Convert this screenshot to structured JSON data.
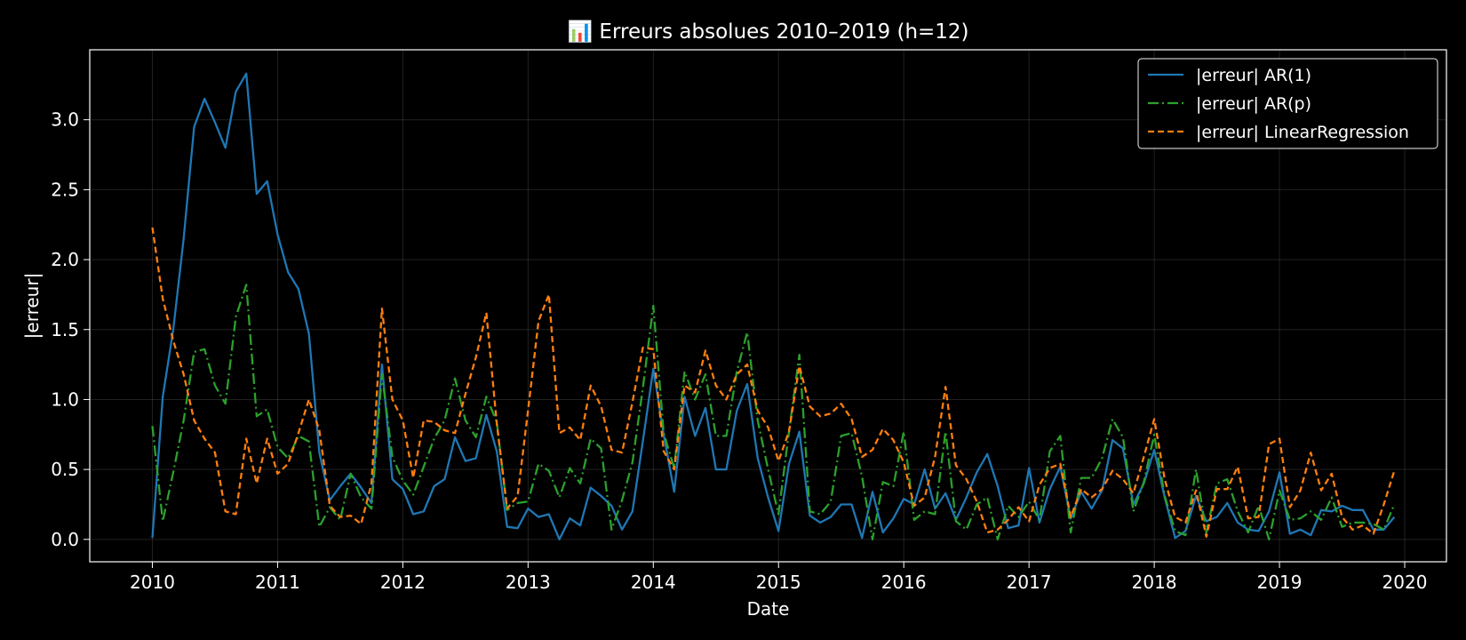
{
  "chart_data": {
    "type": "line",
    "title": "📊 Erreurs absolues 2010–2019 (h=12)",
    "xlabel": "Date",
    "ylabel": "|erreur|",
    "x_start": "2010-01",
    "x_ticks": [
      "2010",
      "2011",
      "2012",
      "2013",
      "2014",
      "2015",
      "2016",
      "2017",
      "2018",
      "2019",
      "2020"
    ],
    "xlim": [
      "2009-07",
      "2020-05"
    ],
    "ylim": [
      -0.16,
      3.5
    ],
    "y_ticks": [
      "0.0",
      "0.5",
      "1.0",
      "1.5",
      "2.0",
      "2.5",
      "3.0"
    ],
    "grid": true,
    "legend_position": "top-right",
    "background": "#000000",
    "foreground": "#ffffff",
    "series": [
      {
        "name": "|erreur| AR(1)",
        "color": "#1f77b4",
        "style": "solid",
        "values": [
          0.01,
          1.02,
          1.5,
          2.15,
          2.95,
          3.15,
          2.98,
          2.8,
          3.2,
          3.33,
          2.47,
          2.56,
          2.18,
          1.91,
          1.79,
          1.47,
          0.62,
          0.28,
          0.38,
          0.47,
          0.37,
          0.26,
          1.25,
          0.43,
          0.36,
          0.18,
          0.2,
          0.38,
          0.43,
          0.73,
          0.56,
          0.58,
          0.89,
          0.63,
          0.09,
          0.08,
          0.22,
          0.16,
          0.18,
          0.0,
          0.15,
          0.1,
          0.37,
          0.31,
          0.24,
          0.07,
          0.2,
          0.7,
          1.22,
          0.75,
          0.34,
          1.02,
          0.74,
          0.94,
          0.5,
          0.5,
          0.92,
          1.11,
          0.58,
          0.3,
          0.06,
          0.54,
          0.77,
          0.17,
          0.12,
          0.16,
          0.25,
          0.25,
          0.01,
          0.34,
          0.05,
          0.15,
          0.29,
          0.25,
          0.5,
          0.22,
          0.33,
          0.14,
          0.3,
          0.48,
          0.61,
          0.38,
          0.08,
          0.1,
          0.51,
          0.12,
          0.36,
          0.52,
          0.15,
          0.34,
          0.22,
          0.35,
          0.71,
          0.65,
          0.25,
          0.4,
          0.64,
          0.3,
          0.01,
          0.06,
          0.31,
          0.13,
          0.16,
          0.26,
          0.12,
          0.07,
          0.06,
          0.2,
          0.48,
          0.04,
          0.07,
          0.03,
          0.21,
          0.2,
          0.24,
          0.21,
          0.21,
          0.07,
          0.07,
          0.16
        ]
      },
      {
        "name": "|erreur| AR(p)",
        "color": "#2ca02c",
        "style": "dashdot",
        "values": [
          0.81,
          0.13,
          0.48,
          0.85,
          1.34,
          1.36,
          1.1,
          0.97,
          1.59,
          1.82,
          0.88,
          0.93,
          0.66,
          0.58,
          0.74,
          0.7,
          0.09,
          0.23,
          0.14,
          0.47,
          0.3,
          0.22,
          1.18,
          0.59,
          0.42,
          0.32,
          0.52,
          0.72,
          0.85,
          1.15,
          0.85,
          0.73,
          1.02,
          0.84,
          0.21,
          0.26,
          0.27,
          0.54,
          0.49,
          0.3,
          0.51,
          0.4,
          0.72,
          0.65,
          0.07,
          0.28,
          0.55,
          1.08,
          1.67,
          0.76,
          0.51,
          1.2,
          1.0,
          1.18,
          0.74,
          0.74,
          1.2,
          1.48,
          0.85,
          0.5,
          0.18,
          0.77,
          1.32,
          0.2,
          0.18,
          0.27,
          0.74,
          0.76,
          0.45,
          0.0,
          0.41,
          0.38,
          0.77,
          0.14,
          0.2,
          0.18,
          0.77,
          0.13,
          0.07,
          0.25,
          0.3,
          0.0,
          0.24,
          0.16,
          0.27,
          0.14,
          0.63,
          0.74,
          0.05,
          0.44,
          0.44,
          0.58,
          0.86,
          0.73,
          0.2,
          0.41,
          0.75,
          0.31,
          0.06,
          0.03,
          0.5,
          0.05,
          0.4,
          0.43,
          0.2,
          0.05,
          0.24,
          0.0,
          0.35,
          0.14,
          0.15,
          0.2,
          0.14,
          0.3,
          0.09,
          0.12,
          0.12,
          0.11,
          0.07,
          0.25
        ]
      },
      {
        "name": "|erreur| LinearRegression",
        "color": "#ff7f0e",
        "style": "dashed",
        "values": [
          2.23,
          1.72,
          1.42,
          1.18,
          0.85,
          0.72,
          0.62,
          0.2,
          0.18,
          0.72,
          0.4,
          0.72,
          0.47,
          0.54,
          0.76,
          1.0,
          0.78,
          0.24,
          0.16,
          0.17,
          0.11,
          0.4,
          1.65,
          1.0,
          0.85,
          0.44,
          0.85,
          0.84,
          0.78,
          0.76,
          1.04,
          1.3,
          1.62,
          0.83,
          0.22,
          0.31,
          0.92,
          1.56,
          1.75,
          0.76,
          0.8,
          0.71,
          1.1,
          0.95,
          0.64,
          0.62,
          0.98,
          1.37,
          1.36,
          0.63,
          0.5,
          1.1,
          1.05,
          1.35,
          1.1,
          1.0,
          1.18,
          1.25,
          0.92,
          0.8,
          0.56,
          0.77,
          1.24,
          0.95,
          0.88,
          0.9,
          0.97,
          0.86,
          0.59,
          0.64,
          0.79,
          0.71,
          0.55,
          0.24,
          0.3,
          0.59,
          1.09,
          0.53,
          0.43,
          0.27,
          0.05,
          0.07,
          0.14,
          0.23,
          0.13,
          0.39,
          0.51,
          0.54,
          0.16,
          0.36,
          0.3,
          0.36,
          0.49,
          0.43,
          0.33,
          0.59,
          0.86,
          0.43,
          0.16,
          0.12,
          0.35,
          0.02,
          0.36,
          0.36,
          0.52,
          0.15,
          0.16,
          0.68,
          0.72,
          0.23,
          0.35,
          0.62,
          0.35,
          0.47,
          0.16,
          0.07,
          0.1,
          0.04,
          0.25,
          0.49
        ]
      }
    ]
  }
}
